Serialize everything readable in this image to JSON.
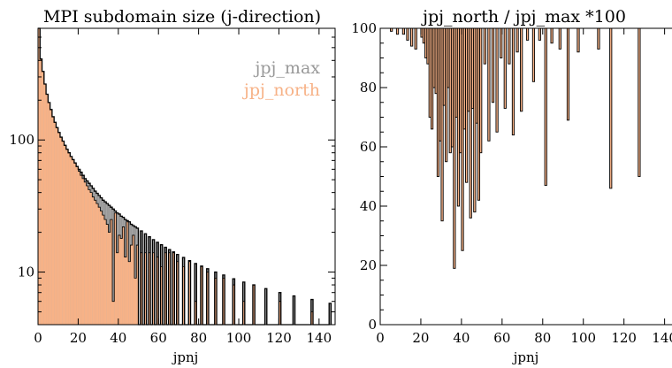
{
  "colors": {
    "jpj_max": "#999999",
    "jpj_north": "#f7b287",
    "edge": "#000000"
  },
  "chart_data": [
    {
      "type": "histogram-step",
      "title": "MPI subdomain size (j-direction)",
      "xlabel": "jpnj",
      "ylabel": "",
      "yscale": "log",
      "xlim": [
        0,
        148
      ],
      "ylim": [
        4,
        700
      ],
      "xticks": [
        0,
        20,
        40,
        60,
        80,
        100,
        120,
        140
      ],
      "yticks": [
        10,
        100
      ],
      "legend_position": "top-right",
      "legend": [
        "jpj_max",
        "jpj_north"
      ],
      "x": [
        1,
        2,
        3,
        4,
        5,
        6,
        7,
        8,
        9,
        10,
        11,
        12,
        13,
        14,
        15,
        16,
        17,
        18,
        19,
        20,
        21,
        22,
        23,
        24,
        25,
        26,
        27,
        28,
        29,
        30,
        31,
        32,
        33,
        34,
        35,
        36,
        37,
        38,
        39,
        40,
        41,
        42,
        43,
        44,
        45,
        46,
        47,
        48,
        49,
        50,
        52,
        54,
        56,
        58,
        60,
        62,
        64,
        66,
        68,
        70,
        73,
        76,
        79,
        82,
        85,
        89,
        93,
        98,
        103,
        108,
        114,
        121,
        128,
        137,
        146
      ],
      "series": [
        {
          "name": "jpj_max",
          "values": [
            700,
            410,
            330,
            265,
            222,
            192,
            170,
            150,
            136,
            124,
            114,
            105,
            98,
            91,
            85,
            80,
            75,
            71,
            67,
            63,
            60,
            57,
            54,
            51,
            49,
            47,
            45,
            43,
            41,
            39.5,
            38,
            36.5,
            35,
            34,
            33,
            32,
            31,
            30,
            29,
            28,
            27.5,
            26.5,
            26,
            25,
            24.5,
            24,
            23,
            22.5,
            22,
            21.5,
            20.5,
            19.5,
            18.5,
            17.6,
            16.8,
            16.1,
            15.4,
            14.8,
            14.2,
            13.6,
            12.9,
            12.2,
            11.6,
            11.1,
            10.6,
            10,
            9.5,
            8.9,
            8.4,
            8,
            7.5,
            7,
            6.6,
            6.2,
            5.8
          ]
        },
        {
          "name": "jpj_north",
          "values": [
            700,
            410,
            330,
            265,
            222,
            192,
            170,
            150,
            136,
            124,
            114,
            105,
            98,
            91,
            85,
            80,
            75,
            71,
            67,
            63,
            58,
            54,
            51,
            48,
            45,
            42,
            40,
            37,
            35,
            33,
            31,
            29,
            27,
            25,
            23,
            20,
            25,
            6,
            28,
            14,
            19,
            18,
            22,
            13,
            24,
            12,
            16,
            19,
            9,
            16,
            14,
            14,
            14,
            14,
            13,
            11,
            14,
            14,
            14,
            12,
            11,
            12,
            6,
            11,
            10,
            9,
            9,
            8,
            6,
            8,
            3.4,
            6,
            3.2,
            5,
            3
          ]
        }
      ]
    },
    {
      "type": "bar",
      "title": "jpj_north / jpj_max *100",
      "xlabel": "jpnj",
      "ylabel": "",
      "xlim": [
        0,
        148
      ],
      "ylim": [
        0,
        100
      ],
      "xticks": [
        0,
        20,
        40,
        60,
        80,
        100,
        120,
        140
      ],
      "yticks": [
        0,
        20,
        40,
        60,
        80,
        100
      ],
      "x": [
        6,
        9,
        12,
        14,
        16,
        18,
        21,
        22,
        23,
        24,
        25,
        26,
        27,
        28,
        29,
        30,
        31,
        32,
        33,
        34,
        35,
        36,
        37,
        38,
        39,
        40,
        41,
        42,
        43,
        44,
        45,
        46,
        47,
        48,
        49,
        50,
        52,
        54,
        56,
        58,
        60,
        62,
        64,
        66,
        68,
        70,
        73,
        76,
        79,
        82,
        85,
        89,
        93,
        98,
        103,
        108,
        114,
        121,
        128,
        137,
        146
      ],
      "values": [
        99,
        98,
        98,
        96,
        94,
        93,
        97,
        95,
        90,
        88,
        70,
        66,
        80,
        78,
        50,
        62,
        35,
        74,
        55,
        80,
        58,
        60,
        19,
        70,
        40,
        58,
        25,
        66,
        48,
        72,
        36,
        73,
        38,
        68,
        42,
        58,
        88,
        62,
        75,
        65,
        90,
        73,
        88,
        64,
        92,
        72,
        96,
        82,
        96,
        47,
        95,
        93,
        69,
        92,
        100,
        93,
        46,
        100,
        50,
        100,
        66
      ]
    }
  ]
}
